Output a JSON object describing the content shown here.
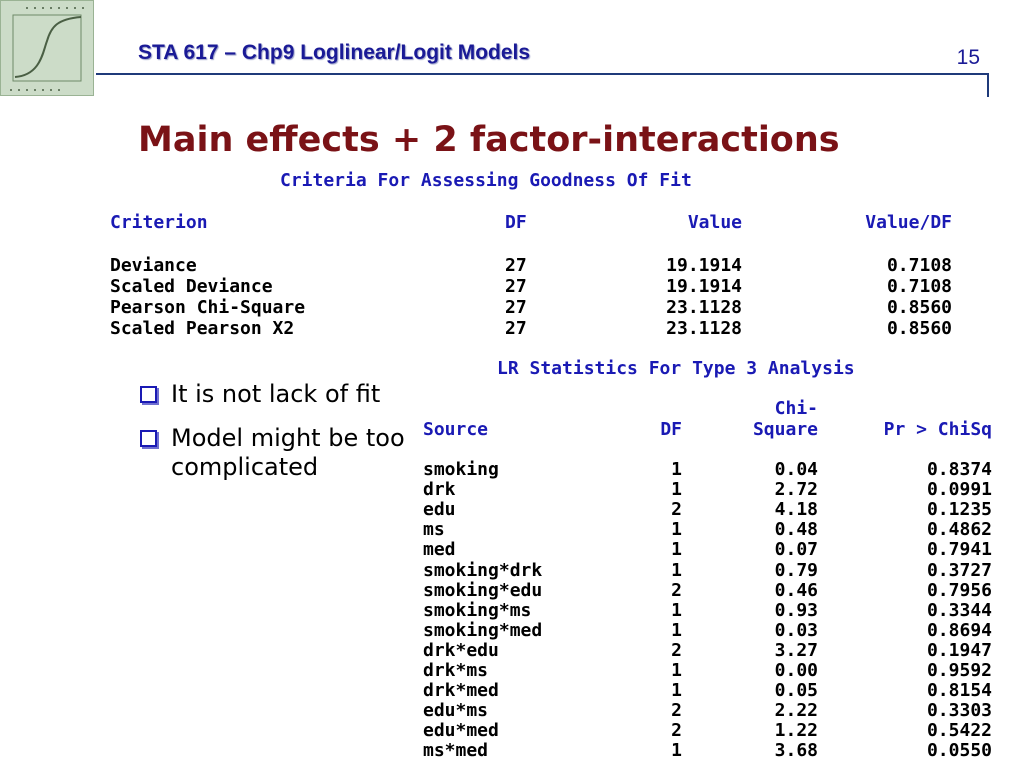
{
  "header": {
    "course_title": "STA 617 – Chp9 Loglinear/Logit Models",
    "page_number": "15"
  },
  "slide_title": "Main effects + 2 factor-interactions",
  "bullets": [
    {
      "label": "It is not lack of fit"
    },
    {
      "label": "Model might be too complicated"
    }
  ],
  "gof_table": {
    "title": "Criteria For Assessing Goodness Of Fit",
    "columns": [
      "Criterion",
      "DF",
      "Value",
      "Value/DF"
    ],
    "rows": [
      {
        "criterion": "Deviance",
        "df": "27",
        "value": "19.1914",
        "value_df": "0.7108"
      },
      {
        "criterion": "Scaled Deviance",
        "df": "27",
        "value": "19.1914",
        "value_df": "0.7108"
      },
      {
        "criterion": "Pearson Chi-Square",
        "df": "27",
        "value": "23.1128",
        "value_df": "0.8560"
      },
      {
        "criterion": "Scaled Pearson X2",
        "df": "27",
        "value": "23.1128",
        "value_df": "0.8560"
      }
    ]
  },
  "lr_table": {
    "title": "LR Statistics For Type 3 Analysis",
    "columns": [
      "Source",
      "DF",
      "Chi-Square",
      "Pr > ChiSq"
    ],
    "chi_header_top": "Chi-",
    "chi_header_bottom": "Square",
    "rows": [
      {
        "source": "smoking",
        "df": "1",
        "chisq": "0.04",
        "p": "0.8374"
      },
      {
        "source": "drk",
        "df": "1",
        "chisq": "2.72",
        "p": "0.0991"
      },
      {
        "source": "edu",
        "df": "2",
        "chisq": "4.18",
        "p": "0.1235"
      },
      {
        "source": "ms",
        "df": "1",
        "chisq": "0.48",
        "p": "0.4862"
      },
      {
        "source": "med",
        "df": "1",
        "chisq": "0.07",
        "p": "0.7941"
      },
      {
        "source": "smoking*drk",
        "df": "1",
        "chisq": "0.79",
        "p": "0.3727"
      },
      {
        "source": "smoking*edu",
        "df": "2",
        "chisq": "0.46",
        "p": "0.7956"
      },
      {
        "source": "smoking*ms",
        "df": "1",
        "chisq": "0.93",
        "p": "0.3344"
      },
      {
        "source": "smoking*med",
        "df": "1",
        "chisq": "0.03",
        "p": "0.8694"
      },
      {
        "source": "drk*edu",
        "df": "2",
        "chisq": "3.27",
        "p": "0.1947"
      },
      {
        "source": "drk*ms",
        "df": "1",
        "chisq": "0.00",
        "p": "0.9592"
      },
      {
        "source": "drk*med",
        "df": "1",
        "chisq": "0.05",
        "p": "0.8154"
      },
      {
        "source": "edu*ms",
        "df": "2",
        "chisq": "2.22",
        "p": "0.3303"
      },
      {
        "source": "edu*med",
        "df": "2",
        "chisq": "1.22",
        "p": "0.5422"
      },
      {
        "source": "ms*med",
        "df": "1",
        "chisq": "3.68",
        "p": "0.0550"
      }
    ]
  }
}
